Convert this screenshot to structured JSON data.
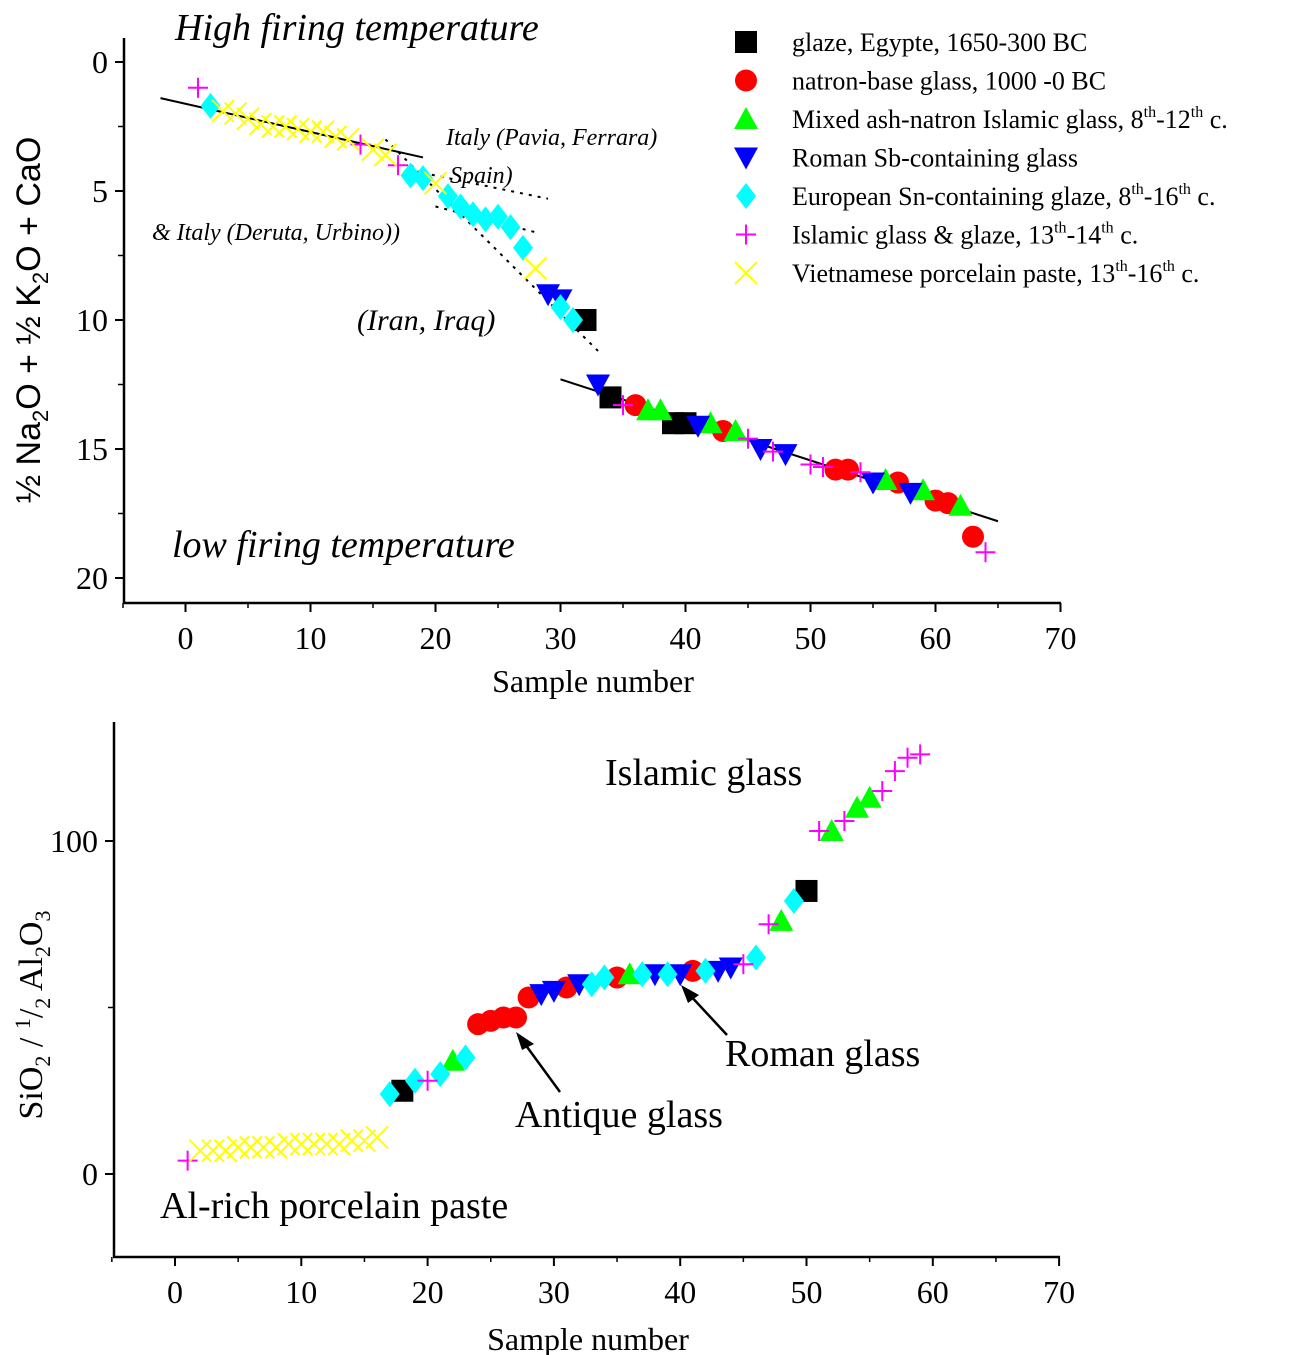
{
  "colors": {
    "egypt_glaze": "#000000",
    "natron_glass": "#ff0000",
    "mixed_ash": "#00ff00",
    "roman_sb": "#0000ff",
    "european_sn": "#00ffff",
    "islamic": "#ff00ff",
    "vietnamese": "#ffff00"
  },
  "chart_data": [
    {
      "type": "scatter",
      "title": "",
      "xlabel": "Sample number",
      "ylabel": "½ Na2O + ½ K2O + CaO",
      "xlim": [
        -5,
        70
      ],
      "ylim": [
        21,
        -1
      ],
      "y_inverted": true,
      "x_ticks": [
        "0",
        "10",
        "20",
        "30",
        "40",
        "50",
        "60",
        "70"
      ],
      "y_ticks": [
        "0",
        "5",
        "10",
        "15",
        "20"
      ],
      "annotations": {
        "high": "High firing temperature",
        "low": "low firing temperature",
        "italy1": "Italy (Pavia, Ferrara)",
        "spain": "Spain)",
        "italy2": "& Italy (Deruta, Urbino))",
        "iran": "(Iran, Iraq)"
      },
      "legend": {
        "placement": "top-right",
        "entries": [
          {
            "series": "glaze",
            "label": "glaze, Egypte, 1650-300 BC"
          },
          {
            "series": "natron",
            "label": "natron-base glass, 1000 -0 BC"
          },
          {
            "series": "mixed",
            "label": "Mixed ash-natron Islamic glass, 8",
            "sup1": "th",
            "mid": "-12",
            "sup2": "th",
            "tail": " c."
          },
          {
            "series": "roman",
            "label": "Roman Sb-containing glass"
          },
          {
            "series": "sn",
            "label": "European Sn-containing glaze, 8",
            "sup1": "th",
            "mid": "-16",
            "sup2": "th",
            "tail": " c."
          },
          {
            "series": "islamic",
            "label": "Islamic glass & glaze, 13",
            "sup1": "th",
            "mid": "-14",
            "sup2": "th",
            "tail": " c."
          },
          {
            "series": "viet",
            "label": "Vietnamese porcelain paste, 13",
            "sup1": "th",
            "mid": "-16",
            "sup2": "th",
            "tail": " c."
          }
        ]
      },
      "fit_lines": [
        {
          "style": "solid",
          "x": [
            -2,
            19
          ],
          "y": [
            1.4,
            3.7
          ]
        },
        {
          "style": "solid",
          "x": [
            30,
            65
          ],
          "y": [
            12.3,
            17.8
          ]
        },
        {
          "style": "dotted",
          "x": [
            16,
            33
          ],
          "y": [
            3.0,
            11.2
          ]
        },
        {
          "style": "dotted",
          "x": [
            20,
            28
          ],
          "y": [
            5.6,
            6.6
          ]
        },
        {
          "style": "dotted",
          "x": [
            19,
            29
          ],
          "y": [
            4.3,
            5.3
          ]
        }
      ],
      "series": [
        {
          "key": "glaze",
          "marker": "square",
          "points": [
            [
              32,
              10
            ],
            [
              34,
              13
            ],
            [
              39,
              14
            ],
            [
              40,
              14
            ]
          ]
        },
        {
          "key": "natron",
          "marker": "circle",
          "points": [
            [
              36,
              13.3
            ],
            [
              43,
              14.3
            ],
            [
              52,
              15.8
            ],
            [
              53,
              15.8
            ],
            [
              57,
              16.3
            ],
            [
              60,
              17
            ],
            [
              61,
              17.1
            ],
            [
              63,
              18.4
            ]
          ]
        },
        {
          "key": "mixed",
          "marker": "triangle-up",
          "points": [
            [
              37,
              13.5
            ],
            [
              38,
              13.5
            ],
            [
              42,
              14
            ],
            [
              44,
              14.3
            ],
            [
              56,
              16.2
            ],
            [
              59,
              16.6
            ],
            [
              62,
              17.2
            ]
          ]
        },
        {
          "key": "roman",
          "marker": "triangle-down",
          "points": [
            [
              29,
              9
            ],
            [
              30,
              9.2
            ],
            [
              33,
              12.5
            ],
            [
              41,
              14.1
            ],
            [
              46,
              15
            ],
            [
              48,
              15.2
            ],
            [
              55,
              16.3
            ],
            [
              58,
              16.7
            ]
          ]
        },
        {
          "key": "sn",
          "marker": "diamond",
          "points": [
            [
              2,
              1.7
            ],
            [
              18,
              4.4
            ],
            [
              19,
              4.5
            ],
            [
              21,
              5.2
            ],
            [
              22,
              5.6
            ],
            [
              23,
              5.9
            ],
            [
              24,
              6.1
            ],
            [
              25,
              6
            ],
            [
              26,
              6.4
            ],
            [
              27,
              7.2
            ],
            [
              30,
              9.5
            ],
            [
              31,
              10
            ]
          ]
        },
        {
          "key": "islamic",
          "marker": "plus",
          "points": [
            [
              1,
              1
            ],
            [
              14,
              3.2
            ],
            [
              17,
              4
            ],
            [
              35,
              13.3
            ],
            [
              45,
              14.6
            ],
            [
              47,
              15.1
            ],
            [
              50,
              15.6
            ],
            [
              51,
              15.7
            ],
            [
              54,
              15.9
            ],
            [
              64,
              19
            ]
          ]
        },
        {
          "key": "viet",
          "marker": "cross",
          "points": [
            [
              3,
              1.9
            ],
            [
              4,
              2
            ],
            [
              5,
              2.2
            ],
            [
              6,
              2.4
            ],
            [
              7,
              2.5
            ],
            [
              8,
              2.5
            ],
            [
              9,
              2.6
            ],
            [
              10,
              2.7
            ],
            [
              11,
              2.7
            ],
            [
              12,
              2.9
            ],
            [
              13,
              3
            ],
            [
              15,
              3.4
            ],
            [
              16,
              3.6
            ],
            [
              20,
              4.7
            ],
            [
              28,
              8
            ]
          ]
        }
      ]
    },
    {
      "type": "scatter",
      "title": "",
      "xlabel": "Sample number",
      "ylabel": "SiO2 / ½ Al2O3",
      "xlim": [
        -5,
        70
      ],
      "ylim": [
        -25,
        140
      ],
      "x_ticks": [
        "0",
        "10",
        "20",
        "30",
        "40",
        "50",
        "60",
        "70"
      ],
      "y_ticks": [
        "0",
        "100"
      ],
      "annotations": {
        "islamic": "Islamic glass",
        "roman": "Roman glass",
        "antique": "Antique glass",
        "alrich": "Al-rich porcelain paste"
      },
      "series": [
        {
          "key": "glaze",
          "marker": "square",
          "points": [
            [
              18,
              25
            ],
            [
              50,
              85
            ]
          ]
        },
        {
          "key": "natron",
          "marker": "circle",
          "points": [
            [
              24,
              45
            ],
            [
              25,
              46
            ],
            [
              26,
              47
            ],
            [
              27,
              47
            ],
            [
              28,
              53
            ],
            [
              31,
              56
            ],
            [
              35,
              59
            ],
            [
              41,
              61
            ]
          ]
        },
        {
          "key": "mixed",
          "marker": "triangle-up",
          "points": [
            [
              22,
              34
            ],
            [
              36,
              60
            ],
            [
              48,
              76
            ],
            [
              52,
              103
            ],
            [
              54,
              110
            ],
            [
              55,
              113
            ]
          ]
        },
        {
          "key": "roman",
          "marker": "triangle-down",
          "points": [
            [
              29,
              54
            ],
            [
              30,
              55
            ],
            [
              32,
              57
            ],
            [
              38,
              60
            ],
            [
              40,
              60
            ],
            [
              43,
              61
            ],
            [
              44,
              62
            ]
          ]
        },
        {
          "key": "sn",
          "marker": "diamond",
          "points": [
            [
              17,
              24
            ],
            [
              19,
              28
            ],
            [
              21,
              30
            ],
            [
              23,
              35
            ],
            [
              33,
              57
            ],
            [
              34,
              59
            ],
            [
              37,
              60
            ],
            [
              39,
              60
            ],
            [
              42,
              61
            ],
            [
              46,
              65
            ],
            [
              49,
              82
            ]
          ]
        },
        {
          "key": "islamic",
          "marker": "plus",
          "points": [
            [
              1,
              4
            ],
            [
              20,
              28
            ],
            [
              45,
              63
            ],
            [
              47,
              75
            ],
            [
              51,
              103
            ],
            [
              53,
              106
            ],
            [
              56,
              115
            ],
            [
              57,
              121
            ],
            [
              58,
              125
            ],
            [
              59,
              126
            ]
          ]
        },
        {
          "key": "viet",
          "marker": "cross",
          "points": [
            [
              2,
              7
            ],
            [
              3,
              7
            ],
            [
              4,
              7
            ],
            [
              5,
              8
            ],
            [
              6,
              8
            ],
            [
              7,
              8
            ],
            [
              8,
              8
            ],
            [
              9,
              9
            ],
            [
              10,
              9
            ],
            [
              11,
              9
            ],
            [
              12,
              9
            ],
            [
              13,
              9
            ],
            [
              14,
              10
            ],
            [
              15,
              10
            ],
            [
              16,
              11
            ]
          ]
        }
      ]
    }
  ]
}
